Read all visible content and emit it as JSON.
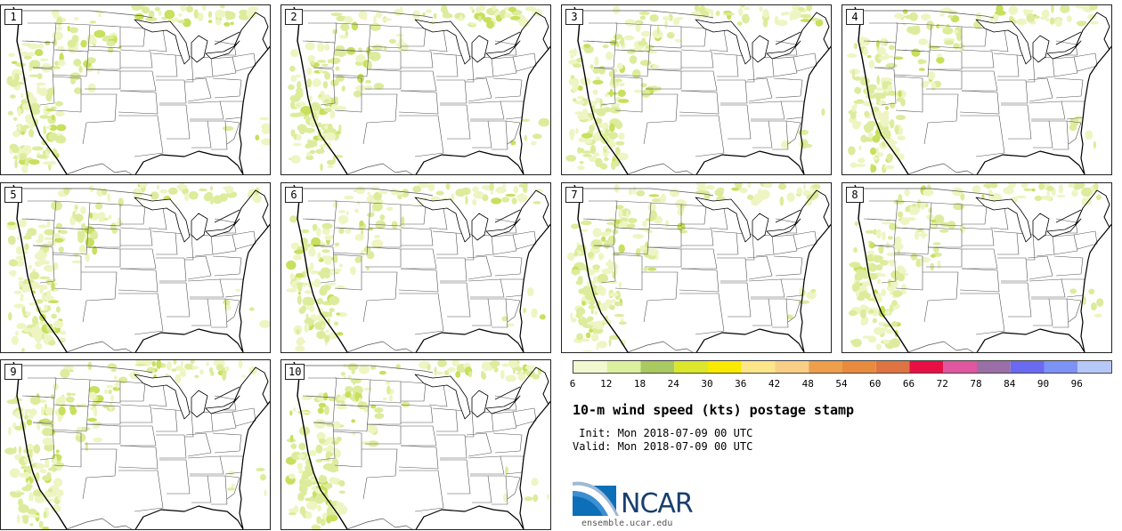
{
  "title": "10-m wind speed (kts) postage stamp",
  "init": " Init: Mon 2018-07-09 00 UTC",
  "valid": "Valid: Mon 2018-07-09 00 UTC",
  "logo_text": "NCAR",
  "site_url": "ensemble.ucar.edu",
  "members": [
    {
      "label": "1"
    },
    {
      "label": "2"
    },
    {
      "label": "3"
    },
    {
      "label": "4"
    },
    {
      "label": "5"
    },
    {
      "label": "6"
    },
    {
      "label": "7"
    },
    {
      "label": "8"
    },
    {
      "label": "9"
    },
    {
      "label": "10"
    }
  ],
  "colorbar": {
    "tick_labels": [
      "6",
      "12",
      "18",
      "24",
      "30",
      "36",
      "42",
      "48",
      "54",
      "60",
      "66",
      "72",
      "78",
      "84",
      "90",
      "96"
    ],
    "colors": [
      "#f2f8d0",
      "#dcef9e",
      "#a9c961",
      "#dce62a",
      "#f9ea02",
      "#fde68a",
      "#f8cf85",
      "#ee9f4c",
      "#e88b3f",
      "#de7442",
      "#e80f44",
      "#e0569f",
      "#9a6ea6",
      "#6a6af0",
      "#7d92f5",
      "#b6c8f7"
    ]
  },
  "colors": {
    "wind_light": "#eef5c2",
    "wind_mid": "#dcec9c",
    "wind_strong": "#c7e05e",
    "coast": "#000000",
    "state_lines": "#555555",
    "logo_blue": "#1a3f6f"
  }
}
